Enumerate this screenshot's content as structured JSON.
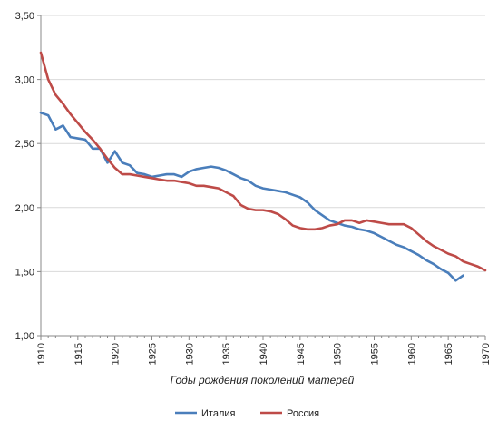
{
  "chart_data": {
    "type": "line",
    "title": "",
    "xlabel": "Годы рождения поколений матерей",
    "ylabel": "",
    "xlim": [
      1910,
      1970
    ],
    "ylim": [
      1.0,
      3.5
    ],
    "x_ticks": [
      1910,
      1915,
      1920,
      1925,
      1930,
      1935,
      1940,
      1945,
      1950,
      1955,
      1960,
      1965,
      1970
    ],
    "y_ticks": [
      1.0,
      1.5,
      2.0,
      2.5,
      3.0,
      3.5
    ],
    "y_tick_labels": [
      "1,00",
      "1,50",
      "2,00",
      "2,50",
      "3,00",
      "3,50"
    ],
    "grid": "horizontal",
    "legend_position": "bottom",
    "series": [
      {
        "name": "Италия",
        "color": "#4a7ebb",
        "x": [
          1910,
          1911,
          1912,
          1913,
          1914,
          1915,
          1916,
          1917,
          1918,
          1919,
          1920,
          1921,
          1922,
          1923,
          1924,
          1925,
          1926,
          1927,
          1928,
          1929,
          1930,
          1931,
          1932,
          1933,
          1934,
          1935,
          1936,
          1937,
          1938,
          1939,
          1940,
          1941,
          1942,
          1943,
          1944,
          1945,
          1946,
          1947,
          1948,
          1949,
          1950,
          1951,
          1952,
          1953,
          1954,
          1955,
          1956,
          1957,
          1958,
          1959,
          1960,
          1961,
          1962,
          1963,
          1964,
          1965,
          1966,
          1967
        ],
        "values": [
          2.74,
          2.72,
          2.61,
          2.64,
          2.55,
          2.54,
          2.53,
          2.46,
          2.46,
          2.35,
          2.44,
          2.35,
          2.33,
          2.27,
          2.26,
          2.24,
          2.25,
          2.26,
          2.26,
          2.24,
          2.28,
          2.3,
          2.31,
          2.32,
          2.31,
          2.29,
          2.26,
          2.23,
          2.21,
          2.17,
          2.15,
          2.14,
          2.13,
          2.12,
          2.1,
          2.08,
          2.04,
          1.98,
          1.94,
          1.9,
          1.88,
          1.86,
          1.85,
          1.83,
          1.82,
          1.8,
          1.77,
          1.74,
          1.71,
          1.69,
          1.66,
          1.63,
          1.59,
          1.56,
          1.52,
          1.49,
          1.43,
          1.47
        ]
      },
      {
        "name": "Россия",
        "color": "#be4b48",
        "x": [
          1910,
          1911,
          1912,
          1913,
          1914,
          1915,
          1916,
          1917,
          1918,
          1919,
          1920,
          1921,
          1922,
          1923,
          1924,
          1925,
          1926,
          1927,
          1928,
          1929,
          1930,
          1931,
          1932,
          1933,
          1934,
          1935,
          1936,
          1937,
          1938,
          1939,
          1940,
          1941,
          1942,
          1943,
          1944,
          1945,
          1946,
          1947,
          1948,
          1949,
          1950,
          1951,
          1952,
          1953,
          1954,
          1955,
          1956,
          1957,
          1958,
          1959,
          1960,
          1961,
          1962,
          1963,
          1964,
          1965,
          1966,
          1967,
          1968,
          1969,
          1970
        ],
        "values": [
          3.21,
          3.0,
          2.88,
          2.81,
          2.73,
          2.66,
          2.59,
          2.53,
          2.46,
          2.38,
          2.31,
          2.26,
          2.26,
          2.25,
          2.24,
          2.23,
          2.22,
          2.21,
          2.21,
          2.2,
          2.19,
          2.17,
          2.17,
          2.16,
          2.15,
          2.12,
          2.09,
          2.02,
          1.99,
          1.98,
          1.98,
          1.97,
          1.95,
          1.91,
          1.86,
          1.84,
          1.83,
          1.83,
          1.84,
          1.86,
          1.87,
          1.9,
          1.9,
          1.88,
          1.9,
          1.89,
          1.88,
          1.87,
          1.87,
          1.87,
          1.84,
          1.79,
          1.74,
          1.7,
          1.67,
          1.64,
          1.62,
          1.58,
          1.56,
          1.54,
          1.51
        ]
      }
    ]
  }
}
